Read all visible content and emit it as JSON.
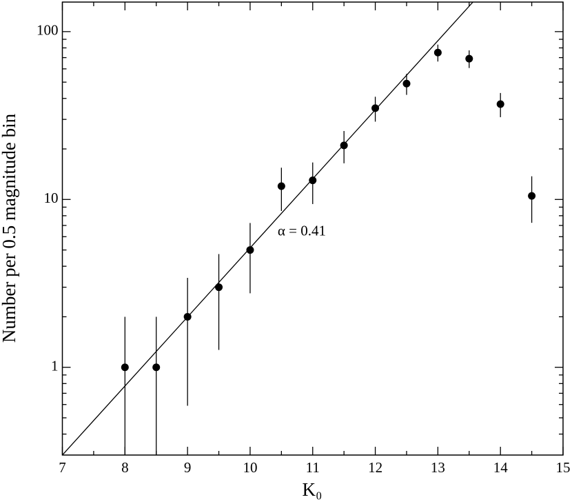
{
  "chart_data": {
    "type": "scatter",
    "xlabel": "K₀",
    "ylabel": "Number per 0.5 magnitude bin",
    "x": [
      8,
      8.5,
      9,
      9.5,
      10,
      10.5,
      11,
      11.5,
      12,
      12.5,
      13,
      13.5,
      14,
      14.5
    ],
    "values": [
      1,
      1,
      2,
      3,
      5,
      12,
      13,
      21,
      35,
      49,
      75,
      69,
      37,
      10.5
    ],
    "errors": [
      1,
      1,
      1.41,
      1.73,
      2.24,
      3.46,
      3.61,
      4.58,
      5.92,
      7,
      8.66,
      8.31,
      6.08,
      3.24
    ],
    "color": "#000000",
    "fit_line": {
      "x": [
        7,
        13.56
      ],
      "values": [
        0.3,
        150
      ]
    },
    "annotation": {
      "text": "α = 0.41",
      "x": 10.44,
      "y": 6.4
    },
    "xlim": [
      7,
      15
    ],
    "xticks": [
      7,
      8,
      9,
      10,
      11,
      12,
      13,
      14,
      15
    ],
    "xminorticks": [
      7.5,
      8.5,
      9.5,
      10.5,
      11.5,
      12.5,
      13.5,
      14.5
    ],
    "ylim": [
      0.3,
      150
    ],
    "yscale": "log",
    "yticks": [
      1,
      10,
      100
    ],
    "yminorticks": [
      0.4,
      0.5,
      0.6,
      0.7,
      0.8,
      0.9,
      2,
      3,
      4,
      5,
      6,
      7,
      8,
      9,
      20,
      30,
      40,
      50,
      60,
      70,
      80,
      90
    ]
  }
}
